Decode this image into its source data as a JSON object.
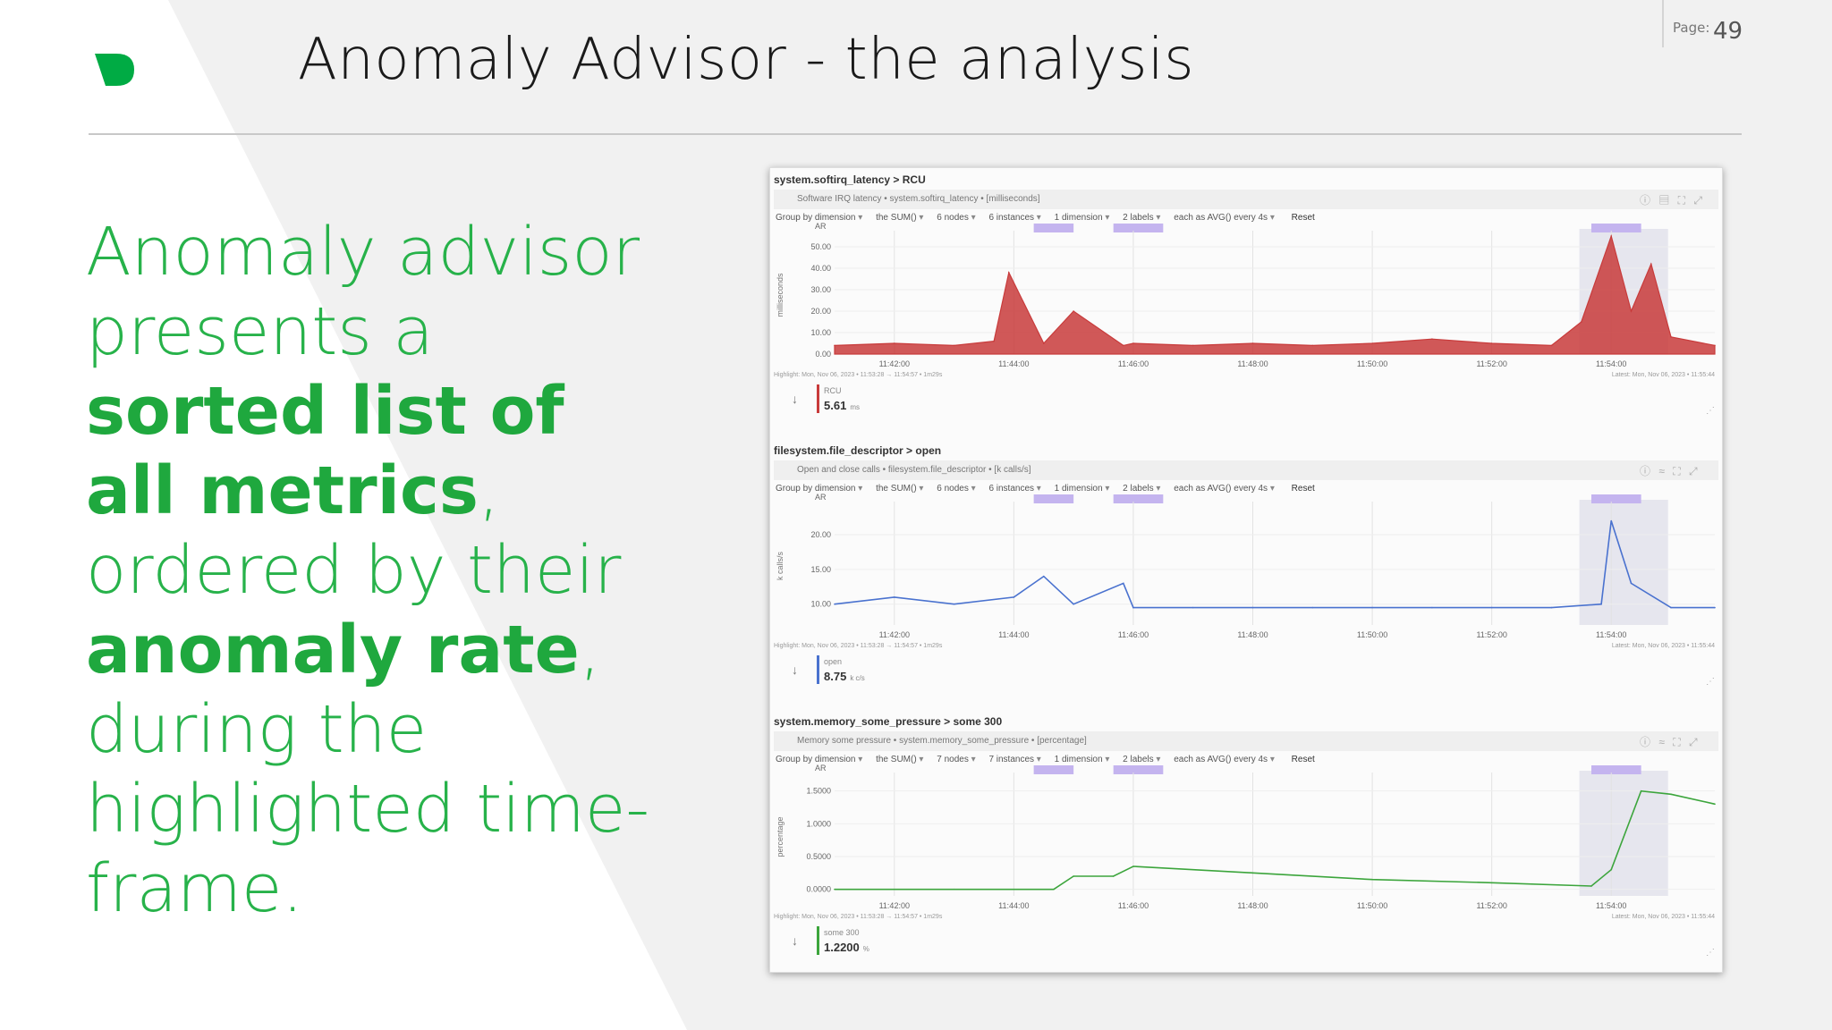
{
  "slide": {
    "title": "Anomaly Advisor - the analysis",
    "page_label": "Page:",
    "page_number": "49",
    "brand_color": "#00ab44",
    "paragraph": {
      "p1": "Anomaly advisor presents a ",
      "b1": "sorted list of all metrics",
      "p2": ", ordered by their ",
      "b2": "anomaly rate",
      "p3": ", during the highlighted time-frame."
    }
  },
  "dashboard": {
    "charts": [
      {
        "title": "system.softirq_latency > RCU",
        "subtitle": "Software IRQ latency • system.softirq_latency • [milliseconds]",
        "controls": {
          "group": "Group by dimension",
          "agg": "the SUM()",
          "nodes": "6 nodes",
          "instances": "6 instances",
          "dimensions": "1 dimension",
          "labels": "2 labels",
          "every": "each as AVG() every 4s",
          "reset": "Reset"
        },
        "ar_label": "AR",
        "yaxis_label": "milliseconds",
        "highlight_text": "Highlight: Mon, Nov 06, 2023 • 11:53:28 → 11:54:57 • 1m29s",
        "latest_text": "Latest: Mon, Nov 06, 2023 • 11:55:44",
        "legend_name": "RCU",
        "legend_value": "5.61",
        "legend_unit": "ms",
        "color": "#c83b3b"
      },
      {
        "title": "filesystem.file_descriptor > open",
        "subtitle": "Open and close calls • filesystem.file_descriptor • [k calls/s]",
        "controls": {
          "group": "Group by dimension",
          "agg": "the SUM()",
          "nodes": "6 nodes",
          "instances": "6 instances",
          "dimensions": "1 dimension",
          "labels": "2 labels",
          "every": "each as AVG() every 4s",
          "reset": "Reset"
        },
        "ar_label": "AR",
        "yaxis_label": "k calls/s",
        "highlight_text": "Highlight: Mon, Nov 06, 2023 • 11:53:28 → 11:54:57 • 1m29s",
        "latest_text": "Latest: Mon, Nov 06, 2023 • 11:55:44",
        "legend_name": "open",
        "legend_value": "8.75",
        "legend_unit": "k c/s",
        "color": "#4a72cf"
      },
      {
        "title": "system.memory_some_pressure > some 300",
        "subtitle": "Memory some pressure • system.memory_some_pressure • [percentage]",
        "controls": {
          "group": "Group by dimension",
          "agg": "the SUM()",
          "nodes": "7 nodes",
          "instances": "7 instances",
          "dimensions": "1 dimension",
          "labels": "2 labels",
          "every": "each as AVG() every 4s",
          "reset": "Reset"
        },
        "ar_label": "AR",
        "yaxis_label": "percentage",
        "highlight_text": "Highlight: Mon, Nov 06, 2023 • 11:53:28 → 11:54:57 • 1m29s",
        "latest_text": "Latest: Mon, Nov 06, 2023 • 11:55:44",
        "legend_name": "some 300",
        "legend_value": "1.2200",
        "legend_unit": "%",
        "color": "#3ca53c"
      }
    ],
    "x_ticks": [
      "11:42:00",
      "11:44:00",
      "11:46:00",
      "11:48:00",
      "11:50:00",
      "11:52:00",
      "11:54:00"
    ]
  },
  "chart_data": [
    {
      "type": "area",
      "title": "system.softirq_latency > RCU",
      "ylabel": "milliseconds",
      "yticks": [
        "50.00",
        "40.00",
        "30.00",
        "20.00",
        "10.00",
        "0.00"
      ],
      "ylim": [
        0,
        55
      ],
      "x": [
        "11:41:00",
        "11:42:00",
        "11:43:00",
        "11:43:40",
        "11:43:55",
        "11:44:30",
        "11:45:00",
        "11:45:50",
        "11:46:00",
        "11:47:00",
        "11:48:00",
        "11:49:00",
        "11:50:00",
        "11:51:00",
        "11:52:00",
        "11:53:00",
        "11:53:30",
        "11:54:00",
        "11:54:20",
        "11:54:40",
        "11:55:00",
        "11:55:44"
      ],
      "values": [
        4,
        5,
        4,
        6,
        38,
        5,
        20,
        4,
        5,
        4,
        5,
        4,
        5,
        7,
        5,
        4,
        15,
        55,
        20,
        42,
        8,
        4
      ]
    },
    {
      "type": "line",
      "title": "filesystem.file_descriptor > open",
      "ylabel": "k calls/s",
      "yticks": [
        "20.00",
        "15.00",
        "10.00"
      ],
      "ylim": [
        7,
        24
      ],
      "x": [
        "11:41:00",
        "11:42:00",
        "11:43:00",
        "11:44:00",
        "11:44:30",
        "11:45:00",
        "11:45:50",
        "11:46:00",
        "11:47:00",
        "11:48:00",
        "11:49:00",
        "11:50:00",
        "11:51:00",
        "11:52:00",
        "11:53:00",
        "11:53:50",
        "11:54:00",
        "11:54:20",
        "11:55:00",
        "11:55:44"
      ],
      "values": [
        10,
        11,
        10,
        11,
        14,
        10,
        13,
        9.5,
        9.5,
        9.5,
        9.5,
        9.5,
        9.5,
        9.5,
        9.5,
        10,
        22,
        13,
        9.5,
        9.5
      ]
    },
    {
      "type": "line",
      "title": "system.memory_some_pressure > some 300",
      "ylabel": "percentage",
      "yticks": [
        "1.5000",
        "1.0000",
        "0.5000",
        "0.0000"
      ],
      "ylim": [
        -0.1,
        1.7
      ],
      "x": [
        "11:41:00",
        "11:43:00",
        "11:44:40",
        "11:45:00",
        "11:45:40",
        "11:46:00",
        "11:48:00",
        "11:50:00",
        "11:52:00",
        "11:53:40",
        "11:54:00",
        "11:54:30",
        "11:55:00",
        "11:55:44"
      ],
      "values": [
        0.0,
        0.0,
        0.0,
        0.2,
        0.2,
        0.35,
        0.25,
        0.15,
        0.1,
        0.05,
        0.3,
        1.5,
        1.45,
        1.3
      ]
    }
  ]
}
